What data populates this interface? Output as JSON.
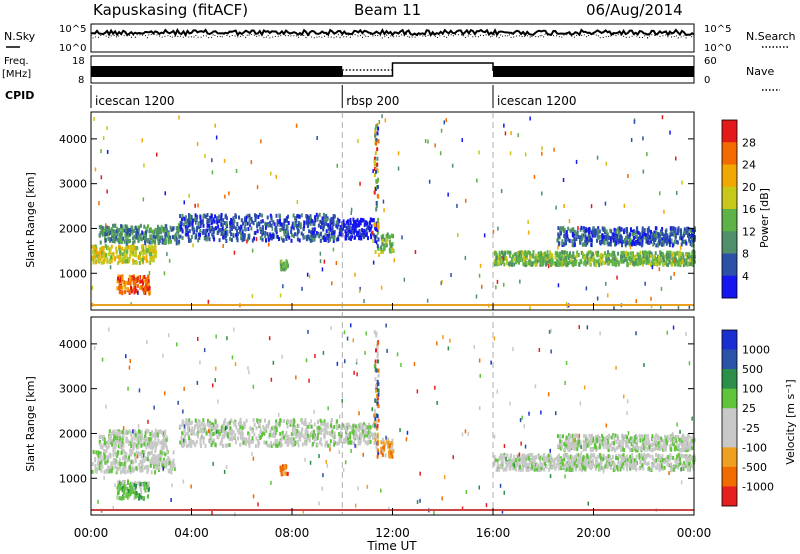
{
  "header": {
    "station": "Kapuskasing (fitACF)",
    "beam": "Beam 11",
    "date": "06/Aug/2014"
  },
  "left_labels": {
    "nsky": "N.Sky",
    "freq": "Freq.",
    "freq_unit": "[MHz]",
    "cpid": "CPID"
  },
  "right_labels": {
    "nsearch": "N.Search",
    "nave": "Nave"
  },
  "noise_panel": {
    "left_ticks": [
      "10^5",
      "10^0"
    ],
    "right_ticks": [
      "10^5",
      "10^0"
    ]
  },
  "freq_panel": {
    "left_ticks": [
      "18",
      "8"
    ],
    "right_ticks": [
      "60",
      "0"
    ]
  },
  "cpid_segments": [
    {
      "label": "icescan 1200",
      "start": 0,
      "end": 10
    },
    {
      "label": "rbsp 200",
      "start": 10,
      "end": 16
    },
    {
      "label": "icescan 1200",
      "start": 16,
      "end": 24
    }
  ],
  "chart_data": [
    {
      "type": "heatmap",
      "panel": "power",
      "ylabel": "Slant Range [km]",
      "y_ticks": [
        "1000",
        "2000",
        "3000",
        "4000"
      ],
      "ylim": [
        180,
        4600
      ],
      "xlim": [
        0,
        24
      ],
      "colorbar_label": "Power [dB]",
      "colorbar_ticks": [
        "4",
        "8",
        "12",
        "16",
        "20",
        "24",
        "28"
      ],
      "colors": [
        "#1515ef",
        "#2c4fa8",
        "#4f8f6a",
        "#5fb346",
        "#c7c81a",
        "#f1a800",
        "#f36b00",
        "#e41a1a"
      ],
      "regions": [
        {
          "t0": 0.0,
          "t1": 2.6,
          "r0": 1250,
          "r1": 1650,
          "level": 4
        },
        {
          "t0": 0.3,
          "t1": 3.5,
          "r0": 1700,
          "r1": 2100,
          "level": 2
        },
        {
          "t0": 1.0,
          "t1": 2.3,
          "r0": 550,
          "r1": 950,
          "level": 6
        },
        {
          "t0": 3.5,
          "t1": 9.8,
          "r0": 1750,
          "r1": 2350,
          "level": 1
        },
        {
          "t0": 9.8,
          "t1": 11.3,
          "r0": 1800,
          "r1": 2250,
          "level": 0
        },
        {
          "t0": 11.5,
          "t1": 12.0,
          "r0": 1500,
          "r1": 1900,
          "level": 3
        },
        {
          "t0": 16.0,
          "t1": 24.0,
          "r0": 1200,
          "r1": 1500,
          "level": 3
        },
        {
          "t0": 18.5,
          "t1": 24.0,
          "r0": 1650,
          "r1": 2050,
          "level": 1
        },
        {
          "t0": 7.5,
          "t1": 7.8,
          "r0": 1100,
          "r1": 1300,
          "level": 3
        }
      ]
    },
    {
      "type": "heatmap",
      "panel": "velocity",
      "ylabel": "Slant Range [km]",
      "y_ticks": [
        "1000",
        "2000",
        "3000",
        "4000"
      ],
      "ylim": [
        180,
        4600
      ],
      "xlim": [
        0,
        24
      ],
      "colorbar_label": "Velocity [m s⁻¹]",
      "colorbar_ticks": [
        "1000",
        "500",
        "100",
        "25",
        "-25",
        "-100",
        "-500",
        "-1000"
      ],
      "colors": [
        "#1a2fd1",
        "#2a52a8",
        "#2b8f4a",
        "#5ec43a",
        "#c8c8c8",
        "#c8c8c8",
        "#f0a020",
        "#f06b00",
        "#e42020"
      ],
      "regions": [
        {
          "t0": 0.0,
          "t1": 3.3,
          "r0": 1150,
          "r1": 1650,
          "level": 4
        },
        {
          "t0": 0.3,
          "t1": 3.0,
          "r0": 1700,
          "r1": 2100,
          "level": 4
        },
        {
          "t0": 1.0,
          "t1": 2.3,
          "r0": 550,
          "r1": 950,
          "level": 3
        },
        {
          "t0": 3.5,
          "t1": 9.8,
          "r0": 1750,
          "r1": 2350,
          "level": 4
        },
        {
          "t0": 9.8,
          "t1": 11.3,
          "r0": 1800,
          "r1": 2250,
          "level": 4
        },
        {
          "t0": 11.5,
          "t1": 12.0,
          "r0": 1500,
          "r1": 1900,
          "level": 6
        },
        {
          "t0": 16.0,
          "t1": 24.0,
          "r0": 1200,
          "r1": 1550,
          "level": 4
        },
        {
          "t0": 18.5,
          "t1": 24.0,
          "r0": 1650,
          "r1": 2000,
          "level": 4
        },
        {
          "t0": 7.5,
          "t1": 7.8,
          "r0": 1100,
          "r1": 1300,
          "level": 7
        }
      ]
    }
  ],
  "x_axis": {
    "ticks": [
      "00:00",
      "04:00",
      "08:00",
      "12:00",
      "16:00",
      "20:00",
      "00:00"
    ],
    "label": "Time UT"
  }
}
